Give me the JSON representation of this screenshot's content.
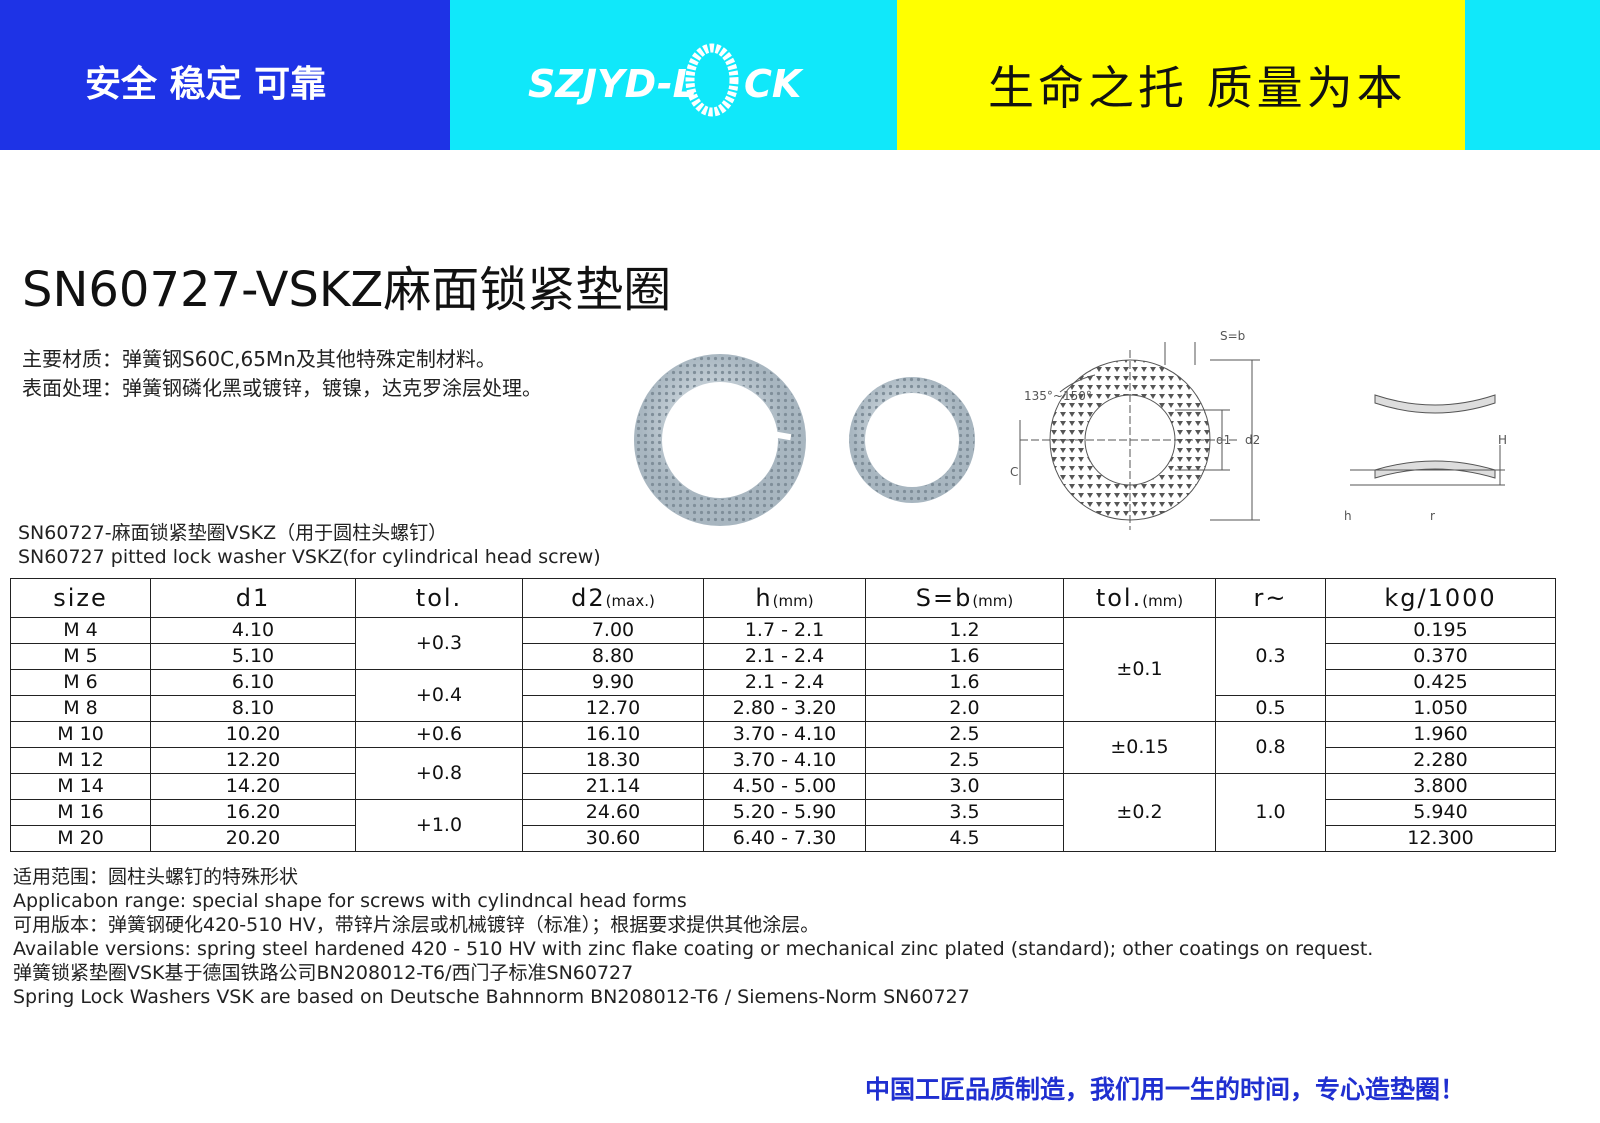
{
  "header": {
    "slogan_left": "安全 稳定 可靠",
    "logo_left": "SZJYD-L",
    "logo_right": "CK",
    "slogan_right": "生命之托 质量为本"
  },
  "title": "SN60727-VSKZ麻面锁紧垫圈",
  "material": [
    "主要材质：弹簧钢S60C,65Mn及其他特殊定制材料。",
    "表面处理：弹簧钢磷化黑或镀锌，镀镍，达克罗涂层处理。"
  ],
  "drawing_labels": {
    "s_b": "S=b",
    "angle": "135°~150°",
    "d1": "d1",
    "d2": "d2",
    "c": "C",
    "h_upper": "H",
    "h_lower": "h",
    "r": "r"
  },
  "caption": [
    "SN60727-麻面锁紧垫圈VSKZ（用于圆柱头螺钉）",
    "SN60727 pitted lock washer VSKZ(for cylindrical head screw)"
  ],
  "table": {
    "headers": [
      {
        "text": "size"
      },
      {
        "text": "d1"
      },
      {
        "text": "tol."
      },
      {
        "text": "d2",
        "unit": "(max.)"
      },
      {
        "text": "h",
        "unit": "(mm)"
      },
      {
        "text": "S=b",
        "unit": "(mm)"
      },
      {
        "text": "tol.",
        "unit": "(mm)"
      },
      {
        "text": "r~"
      },
      {
        "text": "kg/1000"
      }
    ],
    "rows": [
      {
        "size": "M 4",
        "d1": "4.10",
        "d2": "7.00",
        "h": "1.7 - 2.1",
        "s": "1.2",
        "kg": "0.195"
      },
      {
        "size": "M 5",
        "d1": "5.10",
        "d2": "8.80",
        "h": "2.1 - 2.4",
        "s": "1.6",
        "kg": "0.370"
      },
      {
        "size": "M 6",
        "d1": "6.10",
        "d2": "9.90",
        "h": "2.1 - 2.4",
        "s": "1.6",
        "kg": "0.425"
      },
      {
        "size": "M 8",
        "d1": "8.10",
        "d2": "12.70",
        "h": "2.80 - 3.20",
        "s": "2.0",
        "kg": "1.050"
      },
      {
        "size": "M 10",
        "d1": "10.20",
        "d2": "16.10",
        "h": "3.70 - 4.10",
        "s": "2.5",
        "kg": "1.960"
      },
      {
        "size": "M 12",
        "d1": "12.20",
        "d2": "18.30",
        "h": "3.70 - 4.10",
        "s": "2.5",
        "kg": "2.280"
      },
      {
        "size": "M 14",
        "d1": "14.20",
        "d2": "21.14",
        "h": "4.50 - 5.00",
        "s": "3.0",
        "kg": "3.800"
      },
      {
        "size": "M 16",
        "d1": "16.20",
        "d2": "24.60",
        "h": "5.20 - 5.90",
        "s": "3.5",
        "kg": "5.940"
      },
      {
        "size": "M 20",
        "d1": "20.20",
        "d2": "30.60",
        "h": "6.40 - 7.30",
        "s": "4.5",
        "kg": "12.300"
      }
    ],
    "tol": [
      "+0.3",
      "+0.4",
      "+0.6",
      "+0.8",
      "+1.0"
    ],
    "tol_mm": [
      "±0.1",
      "±0.15",
      "±0.2"
    ],
    "r": [
      "0.3",
      "0.5",
      "0.8",
      "1.0"
    ]
  },
  "notes": [
    "适用范围：圆柱头螺钉的特殊形状",
    "Applicabon range: special shape for screws with cylindncal head forms",
    "可用版本：弹簧钢硬化420-510 HV，带锌片涂层或机械镀锌（标准）；根据要求提供其他涂层。",
    "Available versions: spring steel hardened 420 - 510 HV with zinc flake coating or mechanical zinc plated (standard); other coatings on request.",
    "弹簧锁紧垫圈VSK基于德国铁路公司BN208012-T6/西门子标准SN60727",
    "Spring Lock Washers VSK are based on Deutsche Bahnnorm BN208012-T6 / Siemens-Norm SN60727"
  ],
  "footer_slogan": "中国工匠品质制造，我们用一生的时间，专心造垫圈！"
}
